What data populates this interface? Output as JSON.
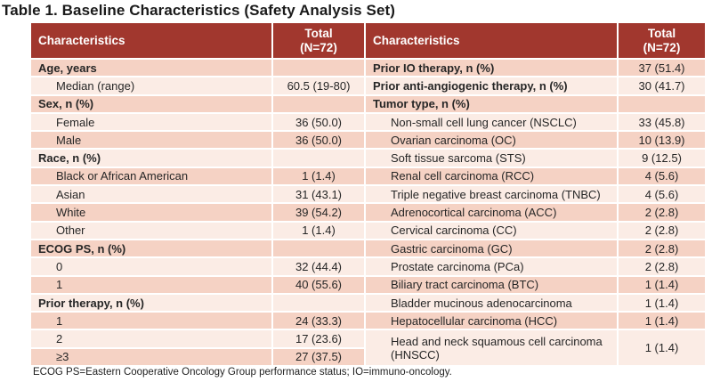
{
  "title": "Table 1. Baseline Characteristics (Safety Analysis Set)",
  "footnote": "ECOG PS=Eastern Cooperative Oncology Group performance status; IO=immuno-oncology.",
  "colors": {
    "header_bg": "#A1372E",
    "band_dark": "#F5D2C4",
    "band_light": "#FBECE5",
    "header_text": "#FFFFFF",
    "body_text": "#262626"
  },
  "left_table": {
    "header_characteristics": "Characteristics",
    "header_total_line1": "Total",
    "header_total_line2": "(N=72)",
    "rows": [
      {
        "label": "Age, years",
        "value": "",
        "bold": true,
        "indent": false
      },
      {
        "label": "Median (range)",
        "value": "60.5 (19-80)",
        "bold": false,
        "indent": true
      },
      {
        "label": "Sex, n (%)",
        "value": "",
        "bold": true,
        "indent": false
      },
      {
        "label": "Female",
        "value": "36 (50.0)",
        "bold": false,
        "indent": true
      },
      {
        "label": "Male",
        "value": "36 (50.0)",
        "bold": false,
        "indent": true
      },
      {
        "label": "Race, n (%)",
        "value": "",
        "bold": true,
        "indent": false
      },
      {
        "label": "Black or African American",
        "value": "1 (1.4)",
        "bold": false,
        "indent": true
      },
      {
        "label": "Asian",
        "value": "31 (43.1)",
        "bold": false,
        "indent": true
      },
      {
        "label": "White",
        "value": "39 (54.2)",
        "bold": false,
        "indent": true
      },
      {
        "label": "Other",
        "value": "1 (1.4)",
        "bold": false,
        "indent": true
      },
      {
        "label": "ECOG PS, n (%)",
        "value": "",
        "bold": true,
        "indent": false
      },
      {
        "label": "0",
        "value": "32 (44.4)",
        "bold": false,
        "indent": true
      },
      {
        "label": "1",
        "value": "40 (55.6)",
        "bold": false,
        "indent": true
      },
      {
        "label": "Prior therapy, n (%)",
        "value": "",
        "bold": true,
        "indent": false
      },
      {
        "label": "1",
        "value": "24 (33.3)",
        "bold": false,
        "indent": true
      },
      {
        "label": "2",
        "value": "17 (23.6)",
        "bold": false,
        "indent": true
      },
      {
        "label": "≥3",
        "value": "27 (37.5)",
        "bold": false,
        "indent": true
      }
    ]
  },
  "right_table": {
    "header_characteristics": "Characteristics",
    "header_total_line1": "Total",
    "header_total_line2": "(N=72)",
    "rows": [
      {
        "label": "Prior IO therapy, n (%)",
        "value": "37 (51.4)",
        "bold": true,
        "indent": false
      },
      {
        "label": "Prior anti-angiogenic therapy, n (%)",
        "value": "30 (41.7)",
        "bold": true,
        "indent": false
      },
      {
        "label": "Tumor type, n (%)",
        "value": "",
        "bold": true,
        "indent": false
      },
      {
        "label": "Non-small cell lung cancer (NSCLC)",
        "value": "33 (45.8)",
        "bold": false,
        "indent": true
      },
      {
        "label": "Ovarian carcinoma (OC)",
        "value": "10 (13.9)",
        "bold": false,
        "indent": true
      },
      {
        "label": "Soft tissue sarcoma (STS)",
        "value": "9 (12.5)",
        "bold": false,
        "indent": true
      },
      {
        "label": "Renal cell carcinoma (RCC)",
        "value": "4 (5.6)",
        "bold": false,
        "indent": true
      },
      {
        "label": "Triple negative breast carcinoma (TNBC)",
        "value": "4 (5.6)",
        "bold": false,
        "indent": true
      },
      {
        "label": "Adrenocortical carcinoma (ACC)",
        "value": "2 (2.8)",
        "bold": false,
        "indent": true
      },
      {
        "label": "Cervical carcinoma (CC)",
        "value": "2 (2.8)",
        "bold": false,
        "indent": true
      },
      {
        "label": "Gastric carcinoma (GC)",
        "value": "2 (2.8)",
        "bold": false,
        "indent": true
      },
      {
        "label": "Prostate carcinoma (PCa)",
        "value": "2 (2.8)",
        "bold": false,
        "indent": true
      },
      {
        "label": "Biliary tract carcinoma (BTC)",
        "value": "1 (1.4)",
        "bold": false,
        "indent": true
      },
      {
        "label": "Bladder mucinous adenocarcinoma",
        "value": "1 (1.4)",
        "bold": false,
        "indent": true
      },
      {
        "label": "Hepatocellular carcinoma (HCC)",
        "value": "1 (1.4)",
        "bold": false,
        "indent": true
      },
      {
        "label": "Head and neck squamous cell carcinoma (HNSCC)",
        "value": "1 (1.4)",
        "bold": false,
        "indent": true,
        "tall": true
      }
    ]
  }
}
